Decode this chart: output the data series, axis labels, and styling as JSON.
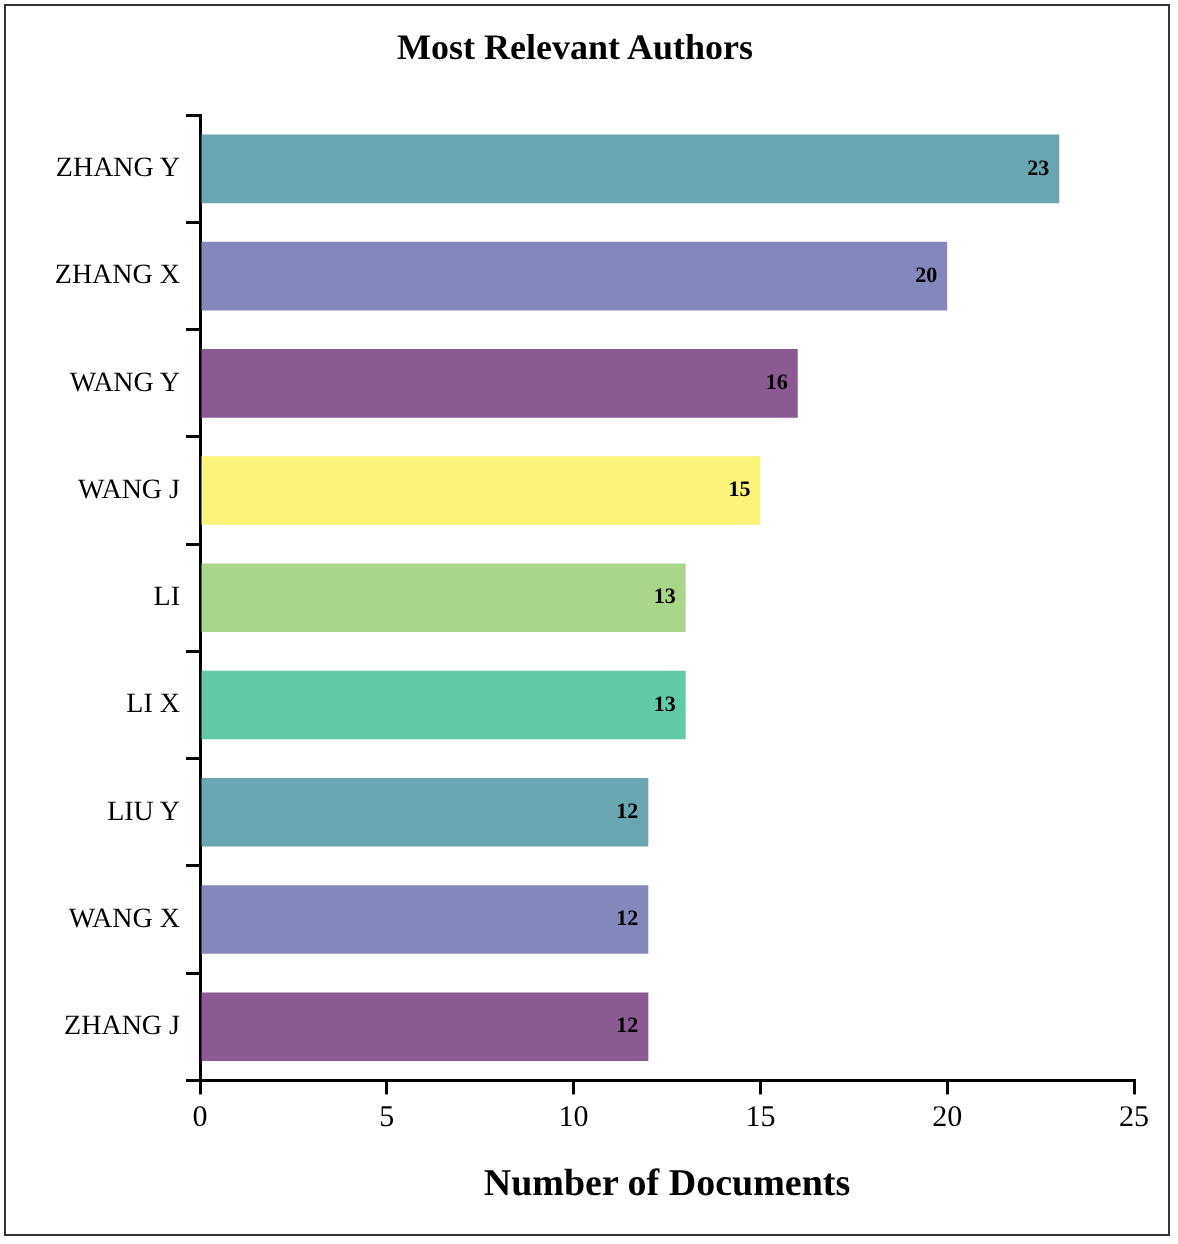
{
  "chart_data": {
    "type": "bar",
    "orientation": "horizontal",
    "title": "Most Relevant Authors",
    "xlabel": "Number of Documents",
    "categories": [
      "ZHANG Y",
      "ZHANG X",
      "WANG Y",
      "WANG J",
      "LI",
      "LI X",
      "LIU Y",
      "WANG X",
      "ZHANG J"
    ],
    "values": [
      23,
      20,
      16,
      15,
      13,
      13,
      12,
      12,
      12
    ],
    "colors": [
      "#6aa5b2",
      "#8487bb",
      "#8b5a93",
      "#fbf37a",
      "#a9d68b",
      "#60caa8",
      "#6aa5b2",
      "#8487bb",
      "#8b5a93"
    ],
    "xlim": [
      0,
      25
    ],
    "xticks": [
      0,
      5,
      10,
      15,
      20,
      25
    ],
    "grid": false,
    "legend": false,
    "data_labels": true
  }
}
